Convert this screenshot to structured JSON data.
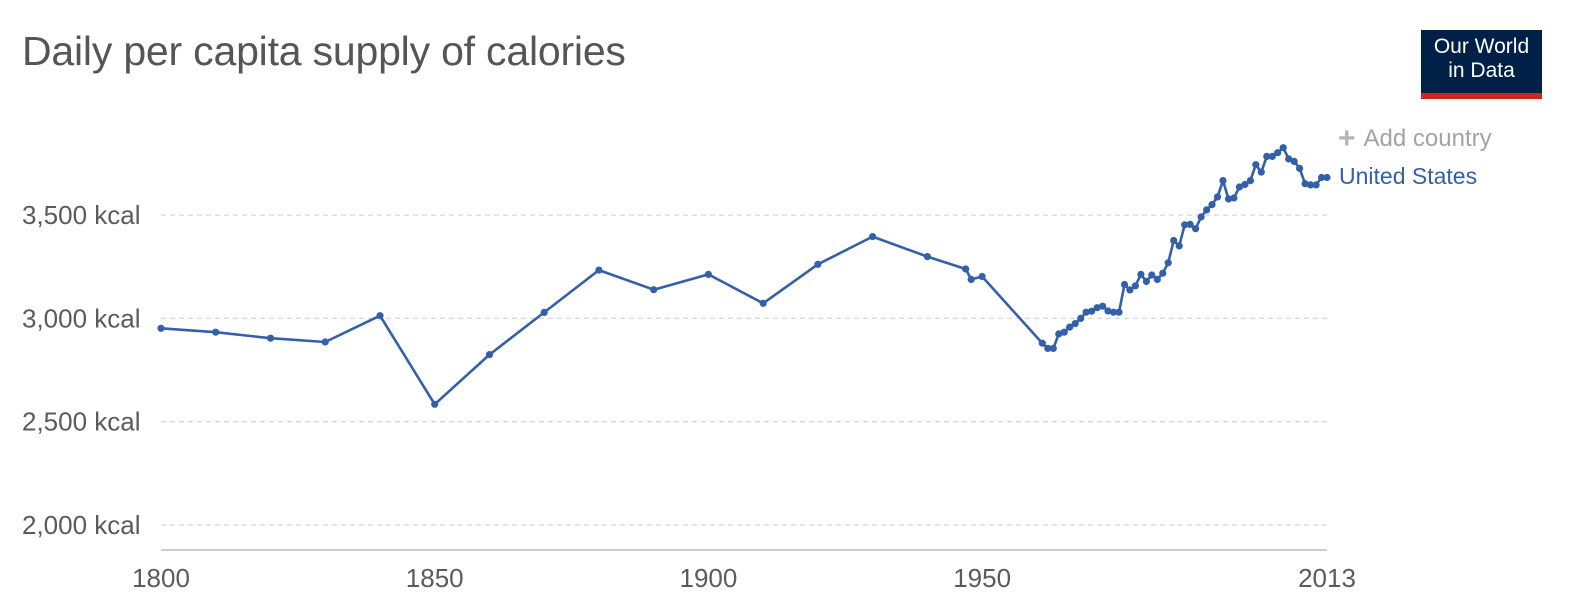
{
  "header": {
    "title": "Daily per capita supply of calories"
  },
  "logo": {
    "line1": "Our World",
    "line2": "in Data",
    "colors": {
      "background": "#002147",
      "stripe": "#ce261e"
    }
  },
  "controls": {
    "add_country_label": "Add country",
    "add_country_icon": "plus-icon"
  },
  "chart_data": {
    "type": "line",
    "title": "Daily per capita supply of calories",
    "xlabel": "",
    "ylabel": "",
    "xlim": [
      1800,
      2013
    ],
    "ylim": [
      1900,
      3850
    ],
    "x_ticks": [
      {
        "value": 1800,
        "label": "1800"
      },
      {
        "value": 1850,
        "label": "1850"
      },
      {
        "value": 1900,
        "label": "1900"
      },
      {
        "value": 1950,
        "label": "1950"
      },
      {
        "value": 2013,
        "label": "2013"
      }
    ],
    "y_ticks": [
      {
        "value": 2000,
        "label": "2,000 kcal"
      },
      {
        "value": 2500,
        "label": "2,500 kcal"
      },
      {
        "value": 3000,
        "label": "3,000 kcal"
      },
      {
        "value": 3500,
        "label": "3,500 kcal"
      }
    ],
    "grid": "horizontal-dashed",
    "legend": "right-end-labels",
    "series": [
      {
        "name": "United States",
        "color": "#3360a9",
        "x": [
          1800,
          1810,
          1820,
          1830,
          1840,
          1850,
          1860,
          1870,
          1880,
          1890,
          1900,
          1910,
          1920,
          1930,
          1940,
          1947,
          1948,
          1950,
          1961,
          1962,
          1963,
          1964,
          1965,
          1966,
          1967,
          1968,
          1969,
          1970,
          1971,
          1972,
          1973,
          1974,
          1975,
          1976,
          1977,
          1978,
          1979,
          1980,
          1981,
          1982,
          1983,
          1984,
          1985,
          1986,
          1987,
          1988,
          1989,
          1990,
          1991,
          1992,
          1993,
          1994,
          1995,
          1996,
          1997,
          1998,
          1999,
          2000,
          2001,
          2002,
          2003,
          2004,
          2005,
          2006,
          2007,
          2008,
          2009,
          2010,
          2011,
          2012,
          2013
        ],
        "values": [
          2952,
          2933,
          2904,
          2886,
          3013,
          2584,
          2825,
          3029,
          3234,
          3139,
          3213,
          3073,
          3262,
          3396,
          3299,
          3239,
          3189,
          3203,
          2880,
          2855,
          2855,
          2925,
          2933,
          2958,
          2975,
          3000,
          3030,
          3035,
          3052,
          3059,
          3036,
          3030,
          3030,
          3164,
          3138,
          3158,
          3213,
          3179,
          3210,
          3189,
          3219,
          3269,
          3377,
          3351,
          3453,
          3455,
          3434,
          3491,
          3525,
          3551,
          3588,
          3667,
          3578,
          3583,
          3636,
          3648,
          3667,
          3744,
          3708,
          3784,
          3784,
          3802,
          3826,
          3772,
          3760,
          3726,
          3652,
          3646,
          3646,
          3682,
          3682
        ]
      }
    ]
  }
}
